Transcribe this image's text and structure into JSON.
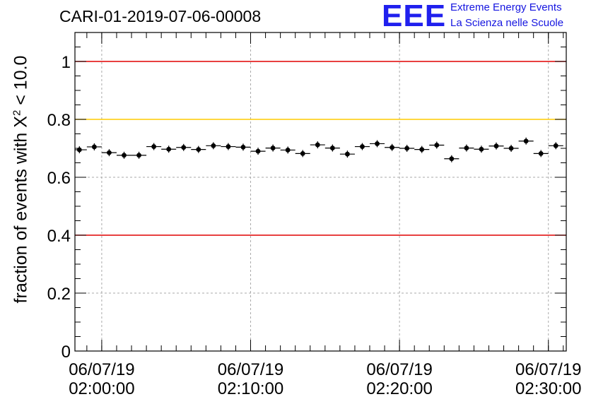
{
  "title": "CARI-01-2019-07-06-00008",
  "logo": {
    "text": "EEE",
    "line1": "Extreme Energy Events",
    "line2": "La Scienza nelle Scuole",
    "color": "#2020ee"
  },
  "chart_data": {
    "type": "scatter",
    "title": "CARI-01-2019-07-06-00008",
    "ylabel_prefix": "fraction of events with X",
    "ylabel_sup": "2",
    "ylabel_suffix": " < 10.0",
    "xlabel": "",
    "ylim": [
      0,
      1.1
    ],
    "xlim_minutes": [
      -1.8,
      31.2
    ],
    "yticks": [
      {
        "value": 0,
        "label": "0"
      },
      {
        "value": 0.2,
        "label": "0.2"
      },
      {
        "value": 0.4,
        "label": "0.4"
      },
      {
        "value": 0.6,
        "label": "0.6"
      },
      {
        "value": 0.8,
        "label": "0.8"
      },
      {
        "value": 1.0,
        "label": "1"
      }
    ],
    "xticks": [
      {
        "minute": 0,
        "date": "06/07/19",
        "time": "02:00:00"
      },
      {
        "minute": 10,
        "date": "06/07/19",
        "time": "02:10:00"
      },
      {
        "minute": 20,
        "date": "06/07/19",
        "time": "02:20:00"
      },
      {
        "minute": 30,
        "date": "06/07/19",
        "time": "02:30:00"
      }
    ],
    "grid": true,
    "bin_width_minutes": 1,
    "x_minutes": [
      -1.5,
      -0.5,
      0.5,
      1.5,
      2.5,
      3.5,
      4.5,
      5.5,
      6.5,
      7.5,
      8.5,
      9.5,
      10.5,
      11.5,
      12.5,
      13.5,
      14.5,
      15.5,
      16.5,
      17.5,
      18.5,
      19.5,
      20.5,
      21.5,
      22.5,
      23.5,
      24.5,
      25.5,
      26.5,
      27.5,
      28.5,
      29.5,
      30.5
    ],
    "values": [
      0.695,
      0.705,
      0.685,
      0.676,
      0.676,
      0.706,
      0.697,
      0.703,
      0.696,
      0.709,
      0.706,
      0.704,
      0.69,
      0.701,
      0.694,
      0.682,
      0.712,
      0.701,
      0.68,
      0.706,
      0.716,
      0.703,
      0.7,
      0.696,
      0.711,
      0.664,
      0.701,
      0.697,
      0.708,
      0.7,
      0.725,
      0.682,
      0.709
    ],
    "reference_lines": [
      {
        "value": 1.0,
        "color": "#e00000"
      },
      {
        "value": 0.8,
        "color": "#ffcc00"
      },
      {
        "value": 0.4,
        "color": "#e00000"
      }
    ]
  }
}
